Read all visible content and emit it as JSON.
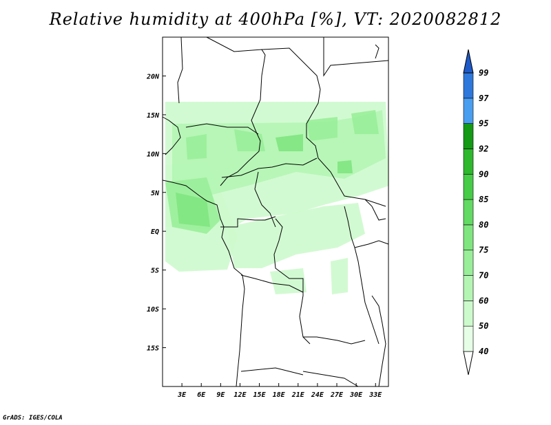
{
  "title": "Relative humidity at 400hPa [%], VT: 2020082812",
  "credit": "GrADS: IGES/COLA",
  "map": {
    "lon_range": [
      0,
      35
    ],
    "lat_range": [
      -20,
      25
    ],
    "lat_ticks": [
      {
        "value": 20,
        "label": "20N"
      },
      {
        "value": 15,
        "label": "15N"
      },
      {
        "value": 10,
        "label": "10N"
      },
      {
        "value": 5,
        "label": "5N"
      },
      {
        "value": 0,
        "label": "EQ"
      },
      {
        "value": -5,
        "label": "5S"
      },
      {
        "value": -10,
        "label": "10S"
      },
      {
        "value": -15,
        "label": "15S"
      }
    ],
    "lon_ticks": [
      {
        "value": 3,
        "label": "3E"
      },
      {
        "value": 6,
        "label": "6E"
      },
      {
        "value": 9,
        "label": "9E"
      },
      {
        "value": 12,
        "label": "12E"
      },
      {
        "value": 15,
        "label": "15E"
      },
      {
        "value": 18,
        "label": "18E"
      },
      {
        "value": 21,
        "label": "21E"
      },
      {
        "value": 24,
        "label": "24E"
      },
      {
        "value": 27,
        "label": "27E"
      },
      {
        "value": 30,
        "label": "30E"
      },
      {
        "value": 33,
        "label": "33E"
      }
    ]
  },
  "colorbar": {
    "levels": [
      "40",
      "50",
      "60",
      "70",
      "75",
      "80",
      "85",
      "90",
      "92",
      "95",
      "97",
      "99"
    ],
    "colors": [
      "#ffffff",
      "#e6fde6",
      "#cdfacd",
      "#b4f5b4",
      "#99ee99",
      "#7fe67f",
      "#63da63",
      "#46cc46",
      "#2db82d",
      "#149a14",
      "#4a9ef0",
      "#2e78dc",
      "#1e5ac8"
    ]
  }
}
